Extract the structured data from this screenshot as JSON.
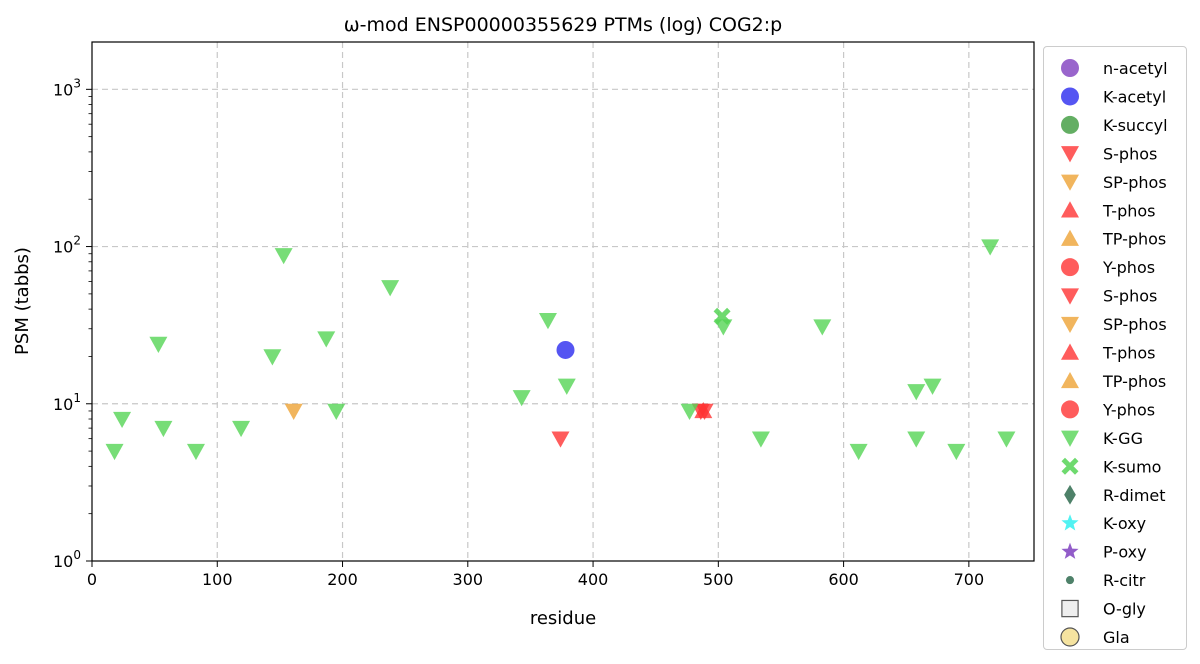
{
  "chart_data": {
    "type": "scatter",
    "title": "ω-mod ENSP00000355629 PTMs (log) COG2:p",
    "xlabel": "residue",
    "ylabel": "PSM (tabbs)",
    "xlim": [
      0,
      752
    ],
    "ylim": [
      1,
      2000
    ],
    "yscale": "log",
    "grid": true,
    "legend_placement": "outside-right",
    "x_ticks": [
      0,
      100,
      200,
      300,
      400,
      500,
      600,
      700
    ],
    "y_ticks": [
      {
        "value": 1,
        "base": "10",
        "exp": "0"
      },
      {
        "value": 10,
        "base": "10",
        "exp": "1"
      },
      {
        "value": 100,
        "base": "10",
        "exp": "2"
      },
      {
        "value": 1000,
        "base": "10",
        "exp": "3"
      }
    ],
    "legend": [
      {
        "label": "n-acetyl",
        "marker": "circle",
        "color": "#7f3fbf"
      },
      {
        "label": "K-acetyl",
        "marker": "circle",
        "color": "#2b2bef"
      },
      {
        "label": "K-succyl",
        "marker": "circle",
        "color": "#3c9a3c"
      },
      {
        "label": "S-phos",
        "marker": "triangle-down",
        "color": "#ff3333"
      },
      {
        "label": "SP-phos",
        "marker": "triangle-down",
        "color": "#eea335"
      },
      {
        "label": "T-phos",
        "marker": "triangle-up",
        "color": "#ff3333"
      },
      {
        "label": "TP-phos",
        "marker": "triangle-up",
        "color": "#eea335"
      },
      {
        "label": "Y-phos",
        "marker": "circle",
        "color": "#ff3333"
      },
      {
        "label": "S-phos",
        "marker": "triangle-down",
        "color": "#ff3333"
      },
      {
        "label": "SP-phos",
        "marker": "triangle-down",
        "color": "#eea335"
      },
      {
        "label": "T-phos",
        "marker": "triangle-up",
        "color": "#ff3333"
      },
      {
        "label": "TP-phos",
        "marker": "triangle-up",
        "color": "#eea335"
      },
      {
        "label": "Y-phos",
        "marker": "circle",
        "color": "#ff3333"
      },
      {
        "label": "K-GG",
        "marker": "triangle-down",
        "color": "#55d455"
      },
      {
        "label": "K-sumo",
        "marker": "x",
        "color": "#55d455"
      },
      {
        "label": "R-dimet",
        "marker": "diamond",
        "color": "#2f6b4f"
      },
      {
        "label": "K-oxy",
        "marker": "star",
        "color": "#33f0f0"
      },
      {
        "label": "P-oxy",
        "marker": "star",
        "color": "#7f3fbf"
      },
      {
        "label": "R-citr",
        "marker": "small-circle",
        "color": "#2f6b4f"
      },
      {
        "label": "O-gly",
        "marker": "square",
        "color": "#eeeeee"
      },
      {
        "label": "Gla",
        "marker": "circle-outline",
        "color": "#f5e3a0"
      }
    ],
    "series": [
      {
        "name": "K-acetyl",
        "marker": "circle",
        "color": "#2b2bef",
        "points": [
          [
            378,
            22
          ]
        ]
      },
      {
        "name": "S-phos",
        "marker": "triangle-down",
        "color": "#ff3333",
        "points": [
          [
            374,
            6
          ],
          [
            486,
            9
          ],
          [
            489,
            9
          ]
        ]
      },
      {
        "name": "SP-phos",
        "marker": "triangle-down",
        "color": "#eea335",
        "points": [
          [
            161,
            9
          ]
        ]
      },
      {
        "name": "T-phos",
        "marker": "triangle-up",
        "color": "#ff3333",
        "points": [
          [
            488,
            9
          ]
        ]
      },
      {
        "name": "K-GG",
        "marker": "triangle-down",
        "color": "#55d455",
        "points": [
          [
            18,
            5
          ],
          [
            24,
            8
          ],
          [
            53,
            24
          ],
          [
            57,
            7
          ],
          [
            83,
            5
          ],
          [
            119,
            7
          ],
          [
            144,
            20
          ],
          [
            153,
            88
          ],
          [
            187,
            26
          ],
          [
            195,
            9
          ],
          [
            238,
            55
          ],
          [
            343,
            11
          ],
          [
            364,
            34
          ],
          [
            379,
            13
          ],
          [
            477,
            9
          ],
          [
            504,
            31
          ],
          [
            534,
            6
          ],
          [
            583,
            31
          ],
          [
            612,
            5
          ],
          [
            658,
            6
          ],
          [
            658,
            12
          ],
          [
            671,
            13
          ],
          [
            690,
            5
          ],
          [
            717,
            100
          ],
          [
            730,
            6
          ]
        ]
      },
      {
        "name": "K-sumo",
        "marker": "x",
        "color": "#55d455",
        "points": [
          [
            503,
            36
          ]
        ]
      }
    ]
  }
}
